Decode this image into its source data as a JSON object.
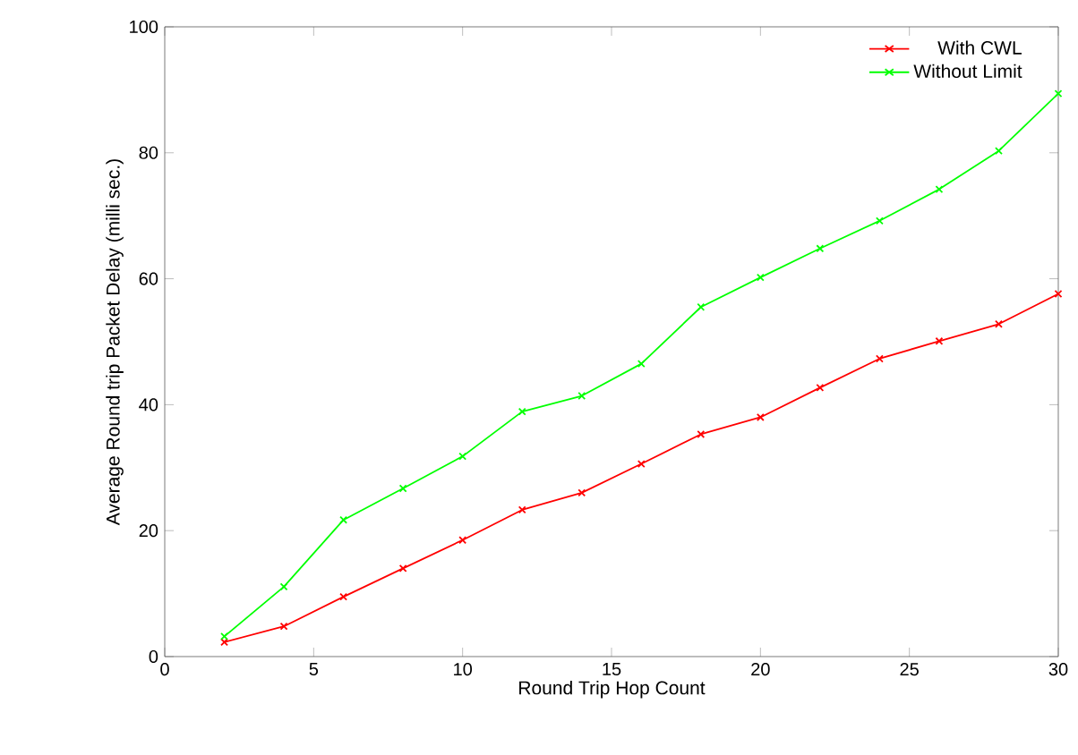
{
  "chart_data": {
    "type": "line",
    "xlabel": "Round Trip Hop Count",
    "ylabel": "Average Round trip Packet Delay (milli sec.)",
    "x": [
      2,
      4,
      6,
      8,
      10,
      12,
      14,
      16,
      18,
      20,
      22,
      24,
      26,
      28,
      30
    ],
    "series": [
      {
        "name": "With CWL",
        "color": "#ff0000",
        "values": [
          2.3,
          4.8,
          9.5,
          14,
          18.5,
          23.3,
          26,
          30.6,
          35.3,
          38,
          42.7,
          47.3,
          50.1,
          52.8,
          57.6
        ]
      },
      {
        "name": "Without Limit",
        "color": "#00ff00",
        "values": [
          3.2,
          11.1,
          21.7,
          26.7,
          31.8,
          38.9,
          41.4,
          46.5,
          55.5,
          60.2,
          64.8,
          69.2,
          74.2,
          80.3,
          89.4
        ]
      }
    ],
    "xlim": [
      0,
      30
    ],
    "ylim": [
      0,
      100
    ],
    "xticks": [
      0,
      5,
      10,
      15,
      20,
      25,
      30
    ],
    "yticks": [
      0,
      20,
      40,
      60,
      80,
      100
    ],
    "grid": false,
    "legend": "top right",
    "marker": "cross",
    "line_style": "solid"
  }
}
